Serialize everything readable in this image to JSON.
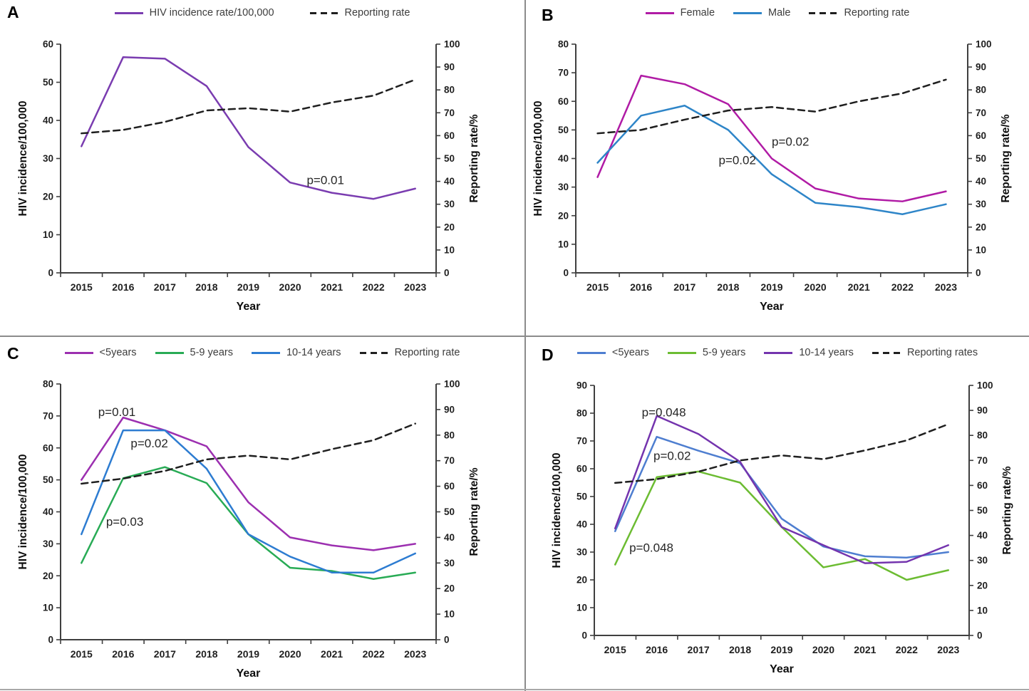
{
  "figure": {
    "panels_order": [
      "A",
      "B",
      "C",
      "D"
    ]
  },
  "chart_data": [
    {
      "panel": "A",
      "type": "line",
      "x": [
        2015,
        2016,
        2017,
        2018,
        2019,
        2020,
        2021,
        2022,
        2023
      ],
      "x_label": "Year",
      "left_axis": {
        "title": "HIV incidence/100,000",
        "min": 0,
        "max": 60,
        "step": 10
      },
      "right_axis": {
        "title": "Reporting rate/%",
        "min": 0,
        "max": 100,
        "step": 10
      },
      "legend_position": "top-center",
      "grid": false,
      "series": [
        {
          "name": "HIV incidence rate/100,000",
          "axis": "left",
          "color": "#7a3cb0",
          "style": "solid",
          "values": [
            33.2,
            56.6,
            56.2,
            49,
            33,
            23.7,
            21,
            19.4,
            22.1
          ]
        },
        {
          "name": "Reporting rate",
          "axis": "right",
          "color": "#1f1f1f",
          "style": "dashed",
          "values": [
            61,
            62.5,
            66,
            71,
            72,
            70.5,
            74.5,
            77.5,
            84.5
          ]
        }
      ],
      "annotations": [
        {
          "text": "p=0.01",
          "x": 2020.4,
          "y": 23.3
        }
      ]
    },
    {
      "panel": "B",
      "type": "line",
      "x": [
        2015,
        2016,
        2017,
        2018,
        2019,
        2020,
        2021,
        2022,
        2023
      ],
      "x_label": "Year",
      "left_axis": {
        "title": "HIV incidence/100,000",
        "min": 0,
        "max": 80,
        "step": 10
      },
      "right_axis": {
        "title": "Reporting rate/%",
        "min": 0,
        "max": 100,
        "step": 10
      },
      "legend_position": "top-center",
      "grid": false,
      "series": [
        {
          "name": "Female",
          "axis": "left",
          "color": "#b01ba5",
          "style": "solid",
          "values": [
            33.5,
            69,
            66,
            59,
            40,
            29.5,
            26,
            25,
            28.5
          ]
        },
        {
          "name": "Male",
          "axis": "left",
          "color": "#2e85c8",
          "style": "solid",
          "values": [
            38.5,
            55,
            58.5,
            50,
            34.5,
            24.5,
            23,
            20.5,
            24
          ]
        },
        {
          "name": "Reporting rate",
          "axis": "right",
          "color": "#1f1f1f",
          "style": "dashed",
          "values": [
            61,
            62.5,
            67,
            71,
            72.5,
            70.5,
            75,
            78.5,
            84.5
          ]
        }
      ],
      "annotations": [
        {
          "text": "p=0.02",
          "x": 2019.0,
          "y": 44.5
        },
        {
          "text": "p=0.02",
          "x": 2017.78,
          "y": 38
        }
      ]
    },
    {
      "panel": "C",
      "type": "line",
      "x": [
        2015,
        2016,
        2017,
        2018,
        2019,
        2020,
        2021,
        2022,
        2023
      ],
      "x_label": "Year",
      "left_axis": {
        "title": "HIV incidence/100,000",
        "min": 0,
        "max": 80,
        "step": 10
      },
      "right_axis": {
        "title": "Reporting rate/%",
        "min": 0,
        "max": 100,
        "step": 10
      },
      "legend_position": "top-center",
      "grid": false,
      "series": [
        {
          "name": "<5years",
          "axis": "left",
          "color": "#9c2fb0",
          "style": "solid",
          "values": [
            50,
            69.5,
            65.5,
            60.5,
            43,
            32,
            29.5,
            28,
            30
          ]
        },
        {
          "name": "5-9 years",
          "axis": "left",
          "color": "#28ab55",
          "style": "solid",
          "values": [
            24,
            50.5,
            54,
            49,
            33,
            22.5,
            21.5,
            19,
            21
          ]
        },
        {
          "name": "10-14 years",
          "axis": "left",
          "color": "#2d7cd1",
          "style": "solid",
          "values": [
            33,
            65.5,
            65.5,
            53.5,
            33,
            26,
            21,
            21,
            27
          ]
        },
        {
          "name": "Reporting rate",
          "axis": "right",
          "color": "#1f1f1f",
          "style": "dashed",
          "values": [
            61,
            63,
            66,
            70.5,
            72,
            70.5,
            74.5,
            78,
            84.5
          ]
        }
      ],
      "annotations": [
        {
          "text": "p=0.01",
          "x": 2015.4,
          "y": 70
        },
        {
          "text": "p=0.02",
          "x": 2016.18,
          "y": 60.2
        },
        {
          "text": "p=0.03",
          "x": 2015.59,
          "y": 35.7
        }
      ]
    },
    {
      "panel": "D",
      "type": "line",
      "x": [
        2015,
        2016,
        2017,
        2018,
        2019,
        2020,
        2021,
        2022,
        2023
      ],
      "x_label": "Year",
      "left_axis": {
        "title": "HIV incidence/100,000",
        "min": 0,
        "max": 90,
        "step": 10
      },
      "right_axis": {
        "title": "Reporting rate/%",
        "min": 0,
        "max": 100,
        "step": 10
      },
      "legend_position": "top-center",
      "grid": false,
      "series": [
        {
          "name": "<5years",
          "axis": "left",
          "color": "#4e7ed0",
          "style": "solid",
          "values": [
            37.5,
            71.5,
            66.5,
            62,
            42,
            32,
            28.5,
            28,
            30
          ]
        },
        {
          "name": "5-9 years",
          "axis": "left",
          "color": "#6cbc32",
          "style": "solid",
          "values": [
            25.5,
            57,
            59,
            55,
            39,
            24.5,
            27.5,
            20,
            23.5
          ]
        },
        {
          "name": "10-14 years",
          "axis": "left",
          "color": "#7434ae",
          "style": "solid",
          "values": [
            38.5,
            79,
            72.5,
            62.5,
            39,
            32.5,
            26,
            26.5,
            32.5
          ]
        },
        {
          "name": "Reporting rates",
          "axis": "right",
          "color": "#1f1f1f",
          "style": "dashed",
          "values": [
            61,
            62.5,
            65.5,
            70,
            72,
            70.5,
            74,
            78,
            84.5
          ]
        }
      ],
      "annotations": [
        {
          "text": "p=0.048",
          "x": 2015.64,
          "y": 78.9
        },
        {
          "text": "p=0.02",
          "x": 2015.92,
          "y": 63.2
        },
        {
          "text": "p=0.048",
          "x": 2015.34,
          "y": 30.1
        }
      ]
    }
  ]
}
